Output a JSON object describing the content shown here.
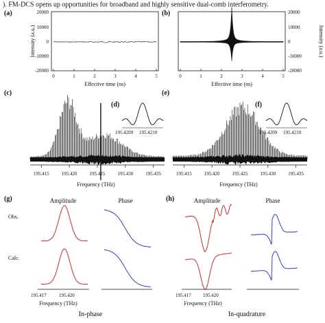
{
  "caption_fragment": "). FM-DCS opens up opportunities for broadband and highly sensitive dual-comb interferometry.",
  "panels": {
    "a": {
      "label": "(a)"
    },
    "b": {
      "label": "(b)"
    },
    "c": {
      "label": "(c)"
    },
    "d": {
      "label": "(d)"
    },
    "e": {
      "label": "(e)"
    },
    "f": {
      "label": "(f)"
    },
    "g": {
      "label": "(g)"
    },
    "h": {
      "label": "(h)"
    }
  },
  "top_axes": {
    "xlabel": "Effective time (ns)",
    "ylabel": "Intensity (a.u.)",
    "xticks": [
      "0",
      "1",
      "2",
      "3",
      "4",
      "5"
    ],
    "yticks": [
      "20000",
      "10000",
      "0",
      "-10000",
      "-20000"
    ]
  },
  "mid_axes": {
    "xlabel": "Frequency (THz)",
    "xticks": [
      "195.415",
      "195.420",
      "195.425",
      "195.430",
      "195.435"
    ],
    "inset_ticks": [
      "195.4209",
      "195.4210"
    ]
  },
  "bottom": {
    "g": {
      "titles": [
        "Amplitude",
        "Phase"
      ],
      "rows": [
        "Obs.",
        "Calc."
      ],
      "xticks": [
        "195.417",
        "195.420"
      ],
      "xlabel": "Frequency (THz)",
      "footer": "In-phase"
    },
    "h": {
      "titles": [
        "Amplitude",
        "Phase"
      ],
      "xticks": [
        "195.417",
        "195.420"
      ],
      "xlabel": "Frequency (THz)",
      "footer": "In-quadrature"
    }
  },
  "colors": {
    "amplitude": "#d42a2a",
    "phase": "#2f3fc4",
    "trace": "#111111"
  },
  "chart_data": [
    {
      "type": "line",
      "panel": "a",
      "x": [
        0,
        1,
        2,
        2.5,
        3,
        4,
        5
      ],
      "y": [
        0,
        0,
        0,
        0,
        0,
        0,
        0
      ],
      "xlim": [
        0,
        5
      ],
      "ylim": [
        -20000,
        20000
      ]
    },
    {
      "type": "line",
      "panel": "b",
      "x": [
        0,
        1,
        2,
        2.5,
        3,
        4,
        5
      ],
      "y": [
        0,
        0,
        0,
        17000,
        0,
        0,
        0
      ],
      "xlim": [
        0,
        5
      ],
      "ylim": [
        -20000,
        20000
      ]
    },
    {
      "type": "bar",
      "panel": "c",
      "xlim": [
        195.413,
        195.437
      ],
      "categories": [
        "195.415",
        "195.420",
        "195.425",
        "195.430",
        "195.435"
      ],
      "peaks": [
        0.3,
        1.0,
        0.5,
        0.4,
        0.15
      ]
    },
    {
      "type": "bar",
      "panel": "e",
      "xlim": [
        195.413,
        195.437
      ],
      "categories": [
        "195.415",
        "195.420",
        "195.425",
        "195.430",
        "195.435"
      ],
      "peaks": [
        0.15,
        0.45,
        1.0,
        0.55,
        0.2
      ]
    },
    {
      "type": "line",
      "panel": "g",
      "series": [
        {
          "name": "Amplitude",
          "x": [
            195.417,
            195.418,
            195.419,
            195.42,
            195.421,
            195.422
          ],
          "y": [
            0.1,
            0.3,
            0.8,
            1.0,
            0.4,
            0.1
          ]
        },
        {
          "name": "Phase",
          "x": [
            195.417,
            195.418,
            195.419,
            195.42,
            195.421,
            195.422
          ],
          "y": [
            1.0,
            0.9,
            0.6,
            0.3,
            0.1,
            0.0
          ]
        }
      ]
    },
    {
      "type": "line",
      "panel": "h",
      "series": [
        {
          "name": "Amplitude",
          "x": [
            195.417,
            195.418,
            195.419,
            195.42,
            195.421,
            195.422
          ],
          "y": [
            1.0,
            0.7,
            0.05,
            0.6,
            0.9,
            1.0
          ]
        },
        {
          "name": "Phase",
          "x": [
            195.417,
            195.418,
            195.419,
            195.42,
            195.421,
            195.422
          ],
          "y": [
            0.5,
            0.45,
            0.2,
            1.0,
            0.75,
            0.7
          ]
        }
      ]
    }
  ]
}
